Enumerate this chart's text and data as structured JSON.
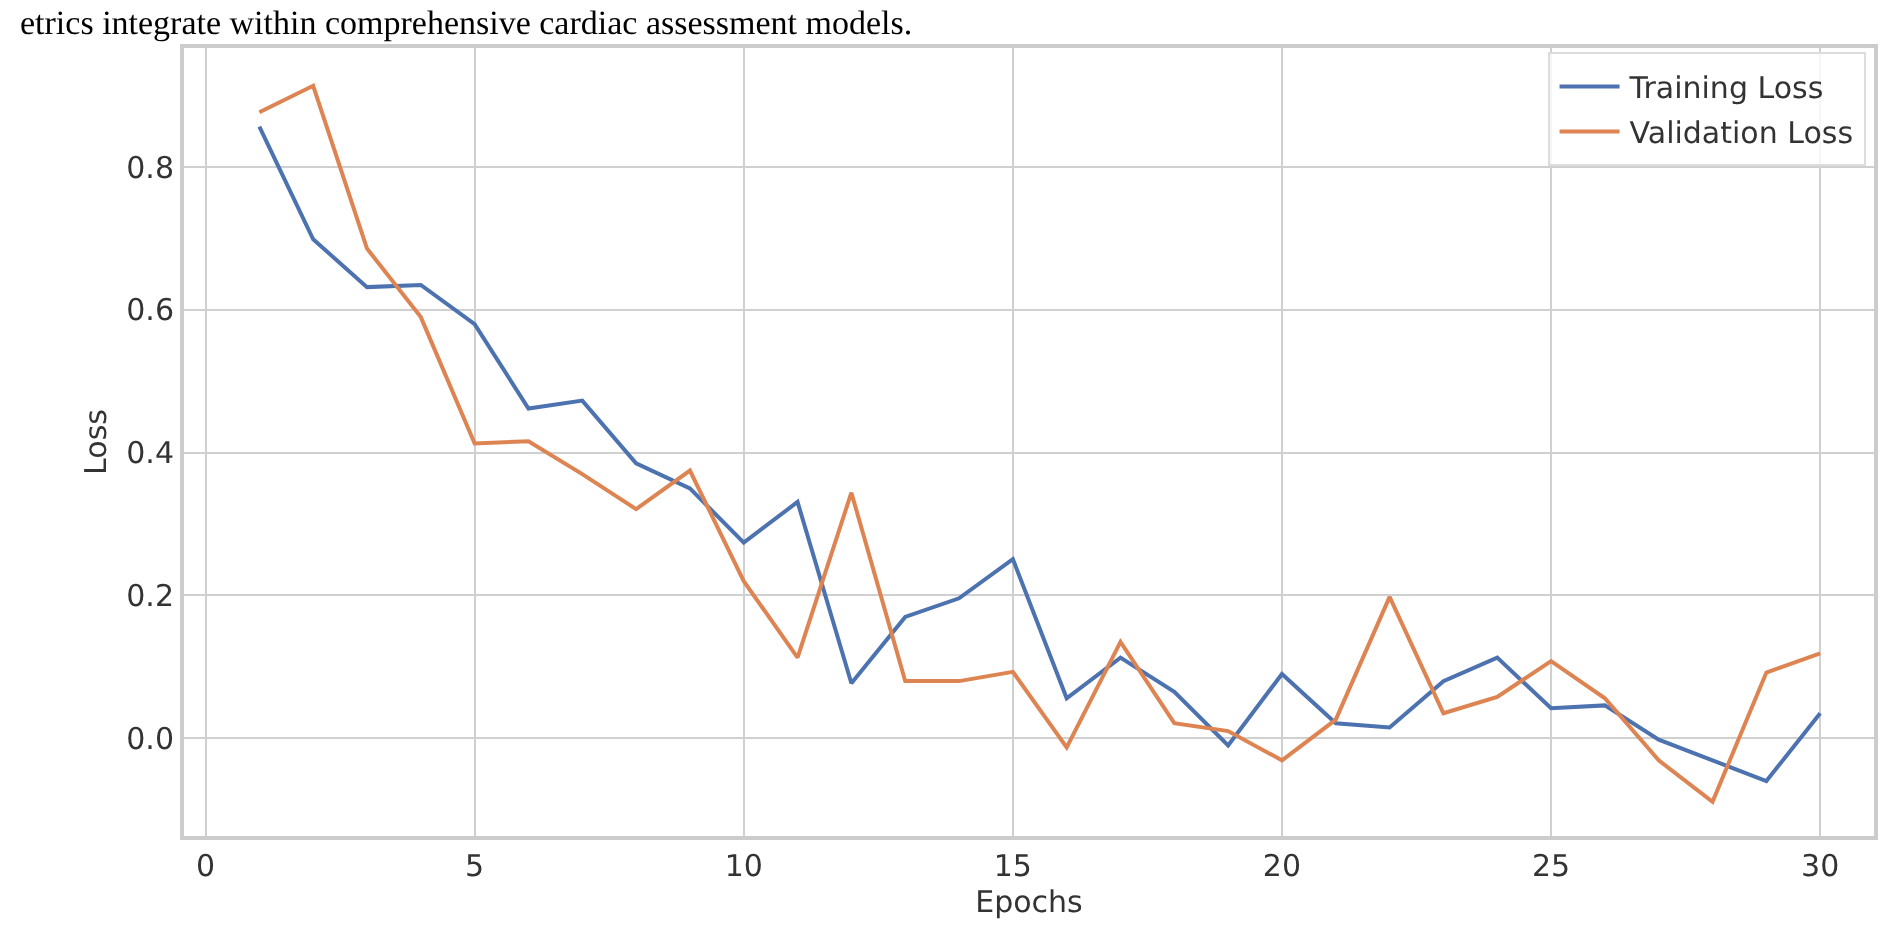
{
  "chart_data": {
    "type": "line",
    "xlabel": "Epochs",
    "ylabel": "Loss",
    "annotations": [
      "etrics integrate within comprehensive cardiac assessment models."
    ],
    "x": [
      1,
      2,
      3,
      4,
      5,
      6,
      7,
      8,
      9,
      10,
      11,
      12,
      13,
      14,
      15,
      16,
      17,
      18,
      19,
      20,
      21,
      22,
      23,
      24,
      25,
      26,
      27,
      28,
      29,
      30
    ],
    "series": [
      {
        "name": "Training Loss",
        "color": "#4c72b0",
        "values": [
          0.857,
          0.699,
          0.632,
          0.635,
          0.58,
          0.462,
          0.473,
          0.385,
          0.35,
          0.274,
          0.331,
          0.077,
          0.17,
          0.196,
          0.251,
          0.056,
          0.113,
          0.065,
          -0.01,
          0.09,
          0.021,
          0.015,
          0.08,
          0.113,
          0.042,
          0.046,
          -0.002,
          -0.031,
          -0.06,
          0.035
        ]
      },
      {
        "name": "Validation Loss",
        "color": "#dd8452",
        "values": [
          0.877,
          0.914,
          0.686,
          0.59,
          0.413,
          0.416,
          0.37,
          0.321,
          0.375,
          0.22,
          0.113,
          0.344,
          0.08,
          0.08,
          0.093,
          -0.013,
          0.135,
          0.021,
          0.01,
          -0.031,
          0.026,
          0.198,
          0.035,
          0.058,
          0.108,
          0.056,
          -0.031,
          -0.089,
          0.092,
          0.119
        ]
      }
    ],
    "xlim": [
      -0.4,
      31.0
    ],
    "xticks": [
      0,
      5,
      10,
      15,
      20,
      25,
      30
    ],
    "ylim": [
      -0.137,
      0.967
    ],
    "yticks": [
      {
        "value": 0.0,
        "label": "0.0"
      },
      {
        "value": 0.2,
        "label": "0.2"
      },
      {
        "value": 0.4,
        "label": "0.4"
      },
      {
        "value": 0.6,
        "label": "0.6"
      },
      {
        "value": 0.8,
        "label": "0.8"
      }
    ],
    "grid": true,
    "legend": "top right",
    "line_style": "solid",
    "marker": "none"
  }
}
